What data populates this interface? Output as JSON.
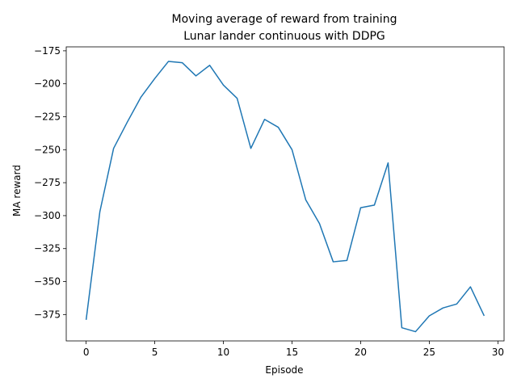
{
  "chart_data": {
    "type": "line",
    "title": "Moving average of reward from training",
    "subtitle": "Lunar lander continuous with DDPG",
    "xlabel": "Episode",
    "ylabel": "MA reward",
    "xlim": [
      -1.45,
      30.45
    ],
    "ylim": [
      -395,
      -172
    ],
    "xticks": [
      0,
      5,
      10,
      15,
      20,
      25,
      30
    ],
    "yticks": [
      -375,
      -350,
      -325,
      -300,
      -275,
      -250,
      -225,
      -200,
      -175
    ],
    "grid": false,
    "legend": "none",
    "series": [
      {
        "color": "#1f77b4",
        "x": [
          0,
          1,
          2,
          3,
          4,
          5,
          6,
          7,
          8,
          9,
          10,
          11,
          12,
          13,
          14,
          15,
          16,
          17,
          18,
          19,
          20,
          21,
          22,
          23,
          24,
          25,
          26,
          27,
          28,
          29
        ],
        "y": [
          -379,
          -297,
          -249,
          -229,
          -210,
          -196,
          -183,
          -184,
          -194,
          -186,
          -201,
          -211,
          -249,
          -227,
          -233,
          -250,
          -288,
          -306,
          -335,
          -334,
          -294,
          -292,
          -260,
          -385,
          -388,
          -376,
          -370,
          -367,
          -354,
          -376
        ]
      }
    ]
  }
}
